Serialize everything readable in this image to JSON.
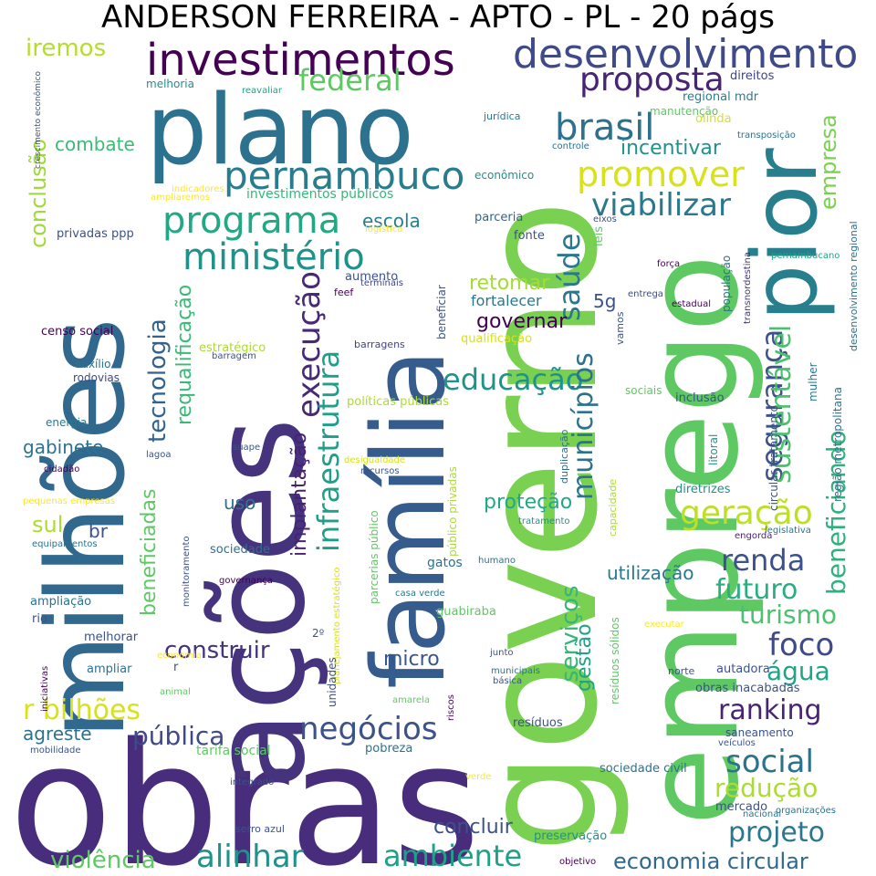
{
  "title": "ANDERSON FERREIRA - APTO - PL - 20 págs",
  "palette": [
    "#440154",
    "#472d7b",
    "#3b528b",
    "#2c728e",
    "#21918c",
    "#28ae80",
    "#5ec962",
    "#addc30",
    "#fde725"
  ],
  "words": [
    {
      "text": "obras",
      "color": "#472d7b"
    },
    {
      "text": "governo",
      "color": "#7ad151"
    },
    {
      "text": "emprego",
      "color": "#5ec962"
    },
    {
      "text": "ações",
      "color": "#46337e"
    },
    {
      "text": "milhões",
      "color": "#31688e"
    },
    {
      "text": "plano",
      "color": "#2c728e"
    },
    {
      "text": "família",
      "color": "#365c8d"
    },
    {
      "text": "pior",
      "color": "#277f8e"
    },
    {
      "text": "investimentos",
      "color": "#440154"
    },
    {
      "text": "desenvolvimento",
      "color": "#3e4a89"
    },
    {
      "text": "pernambuco",
      "color": "#287c8e"
    },
    {
      "text": "programa",
      "color": "#22a884"
    },
    {
      "text": "ministério",
      "color": "#21918c"
    },
    {
      "text": "promover",
      "color": "#d8e219"
    },
    {
      "text": "brasil",
      "color": "#2c728e"
    },
    {
      "text": "proposta",
      "color": "#482475"
    },
    {
      "text": "viabilizar",
      "color": "#2a788e"
    },
    {
      "text": "federal",
      "color": "#5ec962"
    },
    {
      "text": "iremos",
      "color": "#b5de2b"
    },
    {
      "text": "conclusão",
      "color": "#a0da39"
    },
    {
      "text": "combate",
      "color": "#3bbb75"
    },
    {
      "text": "educação",
      "color": "#20928c"
    },
    {
      "text": "execução",
      "color": "#482878"
    },
    {
      "text": "infraestrutura",
      "color": "#1f9e89"
    },
    {
      "text": "municípios",
      "color": "#2c728e"
    },
    {
      "text": "segurança",
      "color": "#3b528b"
    },
    {
      "text": "sustentável",
      "color": "#4ac16d"
    },
    {
      "text": "beneficiando",
      "color": "#2db27d"
    },
    {
      "text": "geração",
      "color": "#bddf26"
    },
    {
      "text": "saúde",
      "color": "#2a788e"
    },
    {
      "text": "tecnologia",
      "color": "#33638d"
    },
    {
      "text": "requalificação",
      "color": "#3aba76"
    },
    {
      "text": "empresa",
      "color": "#7ad151"
    },
    {
      "text": "incentivar",
      "color": "#21918c"
    },
    {
      "text": "governar",
      "color": "#440154"
    },
    {
      "text": "retomar",
      "color": "#a5db36"
    },
    {
      "text": "escola",
      "color": "#277f8e"
    },
    {
      "text": "renda",
      "color": "#3b528b"
    },
    {
      "text": "social",
      "color": "#2c728e"
    },
    {
      "text": "futuro",
      "color": "#28ae80"
    },
    {
      "text": "turismo",
      "color": "#4ac16d"
    },
    {
      "text": "foco",
      "color": "#3e4a89"
    },
    {
      "text": "água",
      "color": "#20a386"
    },
    {
      "text": "ranking",
      "color": "#482475"
    },
    {
      "text": "redução",
      "color": "#addc30"
    },
    {
      "text": "projeto",
      "color": "#2a788e"
    },
    {
      "text": "economia circular",
      "color": "#31688e"
    },
    {
      "text": "negócios",
      "color": "#3b528b"
    },
    {
      "text": "concluir",
      "color": "#3b528b"
    },
    {
      "text": "ambiente",
      "color": "#1fa187"
    },
    {
      "text": "alinhar",
      "color": "#21918c"
    },
    {
      "text": "violência",
      "color": "#5ec962"
    },
    {
      "text": "pública",
      "color": "#3e4a89"
    },
    {
      "text": "agreste",
      "color": "#2c728e"
    },
    {
      "text": "r bilhões",
      "color": "#d8e219"
    },
    {
      "text": "construir",
      "color": "#46337e"
    },
    {
      "text": "micro",
      "color": "#39568c"
    },
    {
      "text": "serviços",
      "color": "#35b779"
    },
    {
      "text": "gestão",
      "color": "#20a386"
    },
    {
      "text": "utilização",
      "color": "#2a788e"
    },
    {
      "text": "proteção",
      "color": "#22a884"
    },
    {
      "text": "implantação",
      "color": "#482173"
    },
    {
      "text": "beneficiadas",
      "color": "#5ec962"
    },
    {
      "text": "sul",
      "color": "#addc30"
    },
    {
      "text": "br",
      "color": "#3b528b"
    },
    {
      "text": "uso",
      "color": "#2c728e"
    },
    {
      "text": "gabinete",
      "color": "#2c728e"
    },
    {
      "text": "5g",
      "color": "#3b528b"
    },
    {
      "text": "fortalecer",
      "color": "#2a788e"
    },
    {
      "text": "parceria",
      "color": "#33638d"
    },
    {
      "text": "fonte",
      "color": "#3b528b"
    },
    {
      "text": "leis",
      "color": "#5ec962"
    },
    {
      "text": "censo social",
      "color": "#440154"
    },
    {
      "text": "auxílio",
      "color": "#2c728e"
    },
    {
      "text": "rodovias",
      "color": "#3e4a89"
    },
    {
      "text": "energia",
      "color": "#2a788e"
    },
    {
      "text": "privadas ppp",
      "color": "#3b528b"
    },
    {
      "text": "investimentos públicos",
      "color": "#35b779"
    },
    {
      "text": "indicadores",
      "color": "#fde725"
    },
    {
      "text": "ampliaremos",
      "color": "#fde725"
    },
    {
      "text": "crescimento econômico",
      "color": "#3b528b"
    },
    {
      "text": "melhoria",
      "color": "#21918c"
    },
    {
      "text": "reavaliar",
      "color": "#20a386"
    },
    {
      "text": "jurídica",
      "color": "#2a788e"
    },
    {
      "text": "econômico",
      "color": "#21918c"
    },
    {
      "text": "manutenção",
      "color": "#5ec962"
    },
    {
      "text": "olinda",
      "color": "#d8e219"
    },
    {
      "text": "regional mdr",
      "color": "#277f8e"
    },
    {
      "text": "direitos",
      "color": "#414487"
    },
    {
      "text": "controle",
      "color": "#2c728e"
    },
    {
      "text": "transposição",
      "color": "#2c728e"
    },
    {
      "text": "eixos",
      "color": "#3b528b"
    },
    {
      "text": "força",
      "color": "#440154"
    },
    {
      "text": "entrega",
      "color": "#3e4a89"
    },
    {
      "text": "estadual",
      "color": "#440154"
    },
    {
      "text": "população",
      "color": "#2c728e"
    },
    {
      "text": "pernambucano",
      "color": "#20a386"
    },
    {
      "text": "desenvolvimento regional",
      "color": "#2c728e"
    },
    {
      "text": "transnordestina",
      "color": "#46337e"
    },
    {
      "text": "vamos",
      "color": "#3b528b"
    },
    {
      "text": "beneficiar",
      "color": "#3b528b"
    },
    {
      "text": "aumento",
      "color": "#3b528b"
    },
    {
      "text": "feef",
      "color": "#440154"
    },
    {
      "text": "terminais",
      "color": "#414487"
    },
    {
      "text": "logística",
      "color": "#fde725"
    },
    {
      "text": "estratégico",
      "color": "#addc30"
    },
    {
      "text": "barragem",
      "color": "#3b528b"
    },
    {
      "text": "barragens",
      "color": "#414487"
    },
    {
      "text": "qualificação",
      "color": "#d8e219"
    },
    {
      "text": "políticas públicas",
      "color": "#addc30"
    },
    {
      "text": "sociais",
      "color": "#5ec962"
    },
    {
      "text": "inclusão",
      "color": "#3b528b"
    },
    {
      "text": "duplicação",
      "color": "#2c728e"
    },
    {
      "text": "circular tratamento",
      "color": "#3b528b"
    },
    {
      "text": "região metropolitana",
      "color": "#2c728e"
    },
    {
      "text": "mulher",
      "color": "#2a788e"
    },
    {
      "text": "litoral",
      "color": "#21918c"
    },
    {
      "text": "diretrizes",
      "color": "#21918c"
    },
    {
      "text": "lagoa",
      "color": "#3b528b"
    },
    {
      "text": "suape",
      "color": "#3b528b"
    },
    {
      "text": "desigualdade",
      "color": "#d8e219"
    },
    {
      "text": "recursos",
      "color": "#3b528b"
    },
    {
      "text": "cidadão",
      "color": "#440154"
    },
    {
      "text": "pequenas empresas",
      "color": "#fde725"
    },
    {
      "text": "equipamentos",
      "color": "#2c728e"
    },
    {
      "text": "sociedade",
      "color": "#2c728e"
    },
    {
      "text": "público privadas",
      "color": "#addc30"
    },
    {
      "text": "parcerias público",
      "color": "#5ec962"
    },
    {
      "text": "capacidade",
      "color": "#addc30"
    },
    {
      "text": "tratamento",
      "color": "#21918c"
    },
    {
      "text": "engorda",
      "color": "#482475"
    },
    {
      "text": "legislativa",
      "color": "#2a788e"
    },
    {
      "text": "gatos",
      "color": "#2c728e"
    },
    {
      "text": "humano",
      "color": "#2c728e"
    },
    {
      "text": "monitoramento",
      "color": "#3b528b"
    },
    {
      "text": "governança",
      "color": "#440154"
    },
    {
      "text": "planejamento estratégico",
      "color": "#d8e219"
    },
    {
      "text": "casa verde",
      "color": "#2a788e"
    },
    {
      "text": "guabiraba",
      "color": "#5ec962"
    },
    {
      "text": "resíduos sólidos",
      "color": "#5ec962"
    },
    {
      "text": "ampliação",
      "color": "#2c728e"
    },
    {
      "text": "rio",
      "color": "#3b528b"
    },
    {
      "text": "melhorar",
      "color": "#3b528b"
    },
    {
      "text": "ampliar",
      "color": "#2c728e"
    },
    {
      "text": "economia",
      "color": "#fde725"
    },
    {
      "text": "r",
      "color": "#3b528b"
    },
    {
      "text": "2º",
      "color": "#3b528b"
    },
    {
      "text": "unidades",
      "color": "#3b528b"
    },
    {
      "text": "riscos",
      "color": "#440154"
    },
    {
      "text": "municipais",
      "color": "#2c728e"
    },
    {
      "text": "básica",
      "color": "#3b528b"
    },
    {
      "text": "junto",
      "color": "#3b528b"
    },
    {
      "text": "executar",
      "color": "#fde725"
    },
    {
      "text": "norte",
      "color": "#3b528b"
    },
    {
      "text": "autadora",
      "color": "#3b528b"
    },
    {
      "text": "obras inacabadas",
      "color": "#3b528b"
    },
    {
      "text": "animal",
      "color": "#5ec962"
    },
    {
      "text": "amarela",
      "color": "#5ec962"
    },
    {
      "text": "iniciativas",
      "color": "#440154"
    },
    {
      "text": "mobilidade",
      "color": "#3b528b"
    },
    {
      "text": "tarifa social",
      "color": "#5ec962"
    },
    {
      "text": "pobreza",
      "color": "#2c728e"
    },
    {
      "text": "resíduos",
      "color": "#3b528b"
    },
    {
      "text": "saneamento",
      "color": "#3b528b"
    },
    {
      "text": "veículos",
      "color": "#3b528b"
    },
    {
      "text": "sociedade civil",
      "color": "#2c728e"
    },
    {
      "text": "mercado",
      "color": "#3b528b"
    },
    {
      "text": "nacional",
      "color": "#2c728e"
    },
    {
      "text": "organizações",
      "color": "#2c728e"
    },
    {
      "text": "integrado",
      "color": "#3b528b"
    },
    {
      "text": "verde",
      "color": "#fde725"
    },
    {
      "text": "serro azul",
      "color": "#3b528b"
    },
    {
      "text": "preservação",
      "color": "#21918c"
    },
    {
      "text": "objetivo",
      "color": "#440154"
    }
  ]
}
